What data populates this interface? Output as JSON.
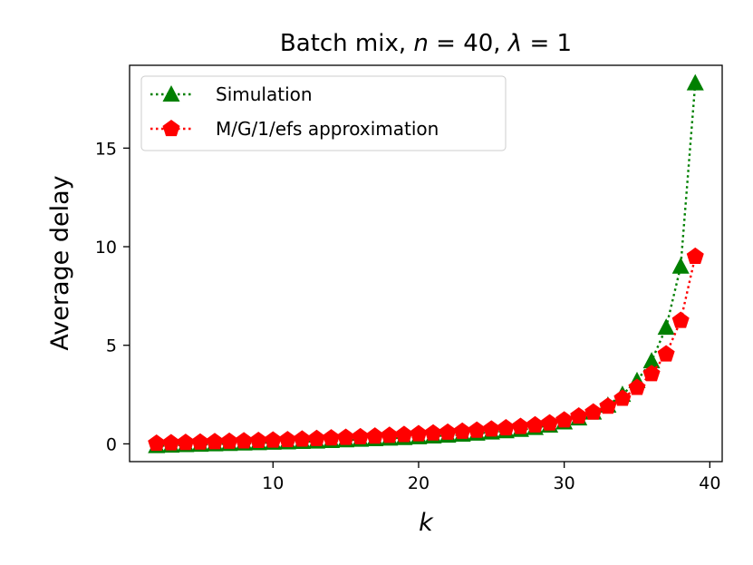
{
  "chart_data": {
    "type": "line",
    "title": {
      "prefix": "Batch mix, ",
      "n_symbol": "n",
      "n_eq": " = 40, ",
      "lambda_symbol": "λ",
      "lambda_eq": " = 1"
    },
    "xlabel": "k",
    "ylabel": "Average delay",
    "xlim": [
      0.15,
      40.85
    ],
    "ylim": [
      -0.9,
      19.2
    ],
    "xticks": [
      10,
      20,
      30,
      40
    ],
    "yticks": [
      0,
      5,
      10,
      15
    ],
    "grid": false,
    "legend_position": "top-left",
    "x": [
      2,
      3,
      4,
      5,
      6,
      7,
      8,
      9,
      10,
      11,
      12,
      13,
      14,
      15,
      16,
      17,
      18,
      19,
      20,
      21,
      22,
      23,
      24,
      25,
      26,
      27,
      28,
      29,
      30,
      31,
      32,
      33,
      34,
      35,
      36,
      37,
      38,
      39
    ],
    "series": [
      {
        "name": "Simulation",
        "color": "#008000",
        "marker": "triangle",
        "line_style": "dotted",
        "values": [
          -0.1,
          -0.08,
          -0.05,
          -0.03,
          -0.01,
          0.01,
          0.03,
          0.05,
          0.07,
          0.09,
          0.11,
          0.13,
          0.16,
          0.19,
          0.22,
          0.25,
          0.28,
          0.31,
          0.35,
          0.39,
          0.43,
          0.48,
          0.53,
          0.59,
          0.65,
          0.72,
          0.82,
          0.94,
          1.1,
          1.3,
          1.6,
          1.95,
          2.5,
          3.2,
          4.2,
          5.9,
          9.0,
          18.3
        ]
      },
      {
        "name": "M/G/1/efs approximation",
        "color": "#ff0000",
        "marker": "pentagon",
        "line_style": "dotted",
        "values": [
          0.02,
          0.04,
          0.06,
          0.08,
          0.1,
          0.12,
          0.14,
          0.16,
          0.18,
          0.2,
          0.23,
          0.26,
          0.29,
          0.32,
          0.35,
          0.38,
          0.42,
          0.46,
          0.5,
          0.54,
          0.58,
          0.63,
          0.68,
          0.74,
          0.8,
          0.87,
          0.95,
          1.05,
          1.2,
          1.4,
          1.6,
          1.9,
          2.3,
          2.85,
          3.55,
          4.55,
          6.25,
          9.5
        ]
      }
    ]
  }
}
